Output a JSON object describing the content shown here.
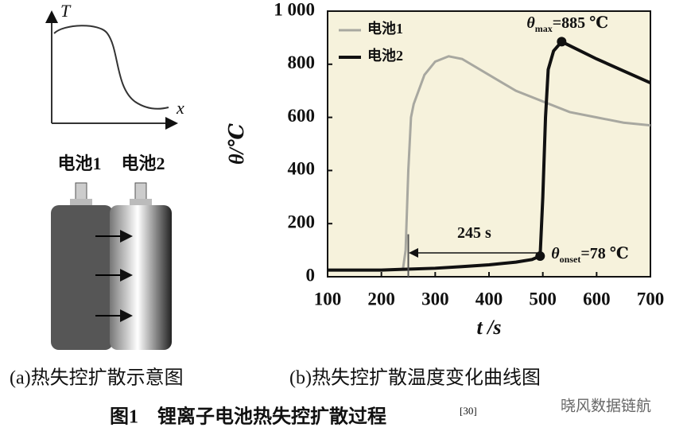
{
  "chart_data": {
    "type": "line",
    "x_label": "t /s",
    "y_label": "θ/℃",
    "xlim": [
      100,
      700
    ],
    "xticks": [
      100,
      200,
      300,
      400,
      500,
      600,
      700
    ],
    "ylim": [
      0,
      1000
    ],
    "yticks": [
      0,
      200,
      400,
      600,
      800,
      {
        "value": 1000,
        "label": "1 000"
      }
    ],
    "background": "#f6f2dc",
    "legend": "top-left",
    "series": [
      {
        "name": "电池1",
        "color": "#a8a8a0",
        "x": [
          100,
          200,
          240,
          245,
          250,
          255,
          260,
          280,
          300,
          325,
          350,
          400,
          450,
          500,
          550,
          600,
          650,
          700
        ],
        "values": [
          25,
          25,
          28,
          100,
          400,
          600,
          650,
          760,
          810,
          830,
          820,
          760,
          700,
          660,
          620,
          600,
          580,
          570
        ]
      },
      {
        "name": "电池2",
        "color": "#111111",
        "x": [
          100,
          200,
          240,
          300,
          350,
          400,
          450,
          480,
          495,
          500,
          505,
          510,
          520,
          535,
          550,
          600,
          650,
          700
        ],
        "values": [
          25,
          25,
          28,
          32,
          38,
          45,
          55,
          65,
          78,
          300,
          600,
          780,
          850,
          885,
          870,
          820,
          775,
          730
        ]
      }
    ],
    "annotations": {
      "max": {
        "symbol": "θ",
        "subscript": "max",
        "text": "=885 ℃",
        "x": 535,
        "y": 885
      },
      "onset": {
        "symbol": "θ",
        "subscript": "onset",
        "text": "=78 ℃",
        "x": 495,
        "y": 78
      },
      "span": {
        "label": "245 s",
        "value": 245
      }
    }
  },
  "diagram": {
    "y_axis": "T",
    "x_axis": "x",
    "cell_1": "电池1",
    "cell_2": "电池2"
  },
  "captions": {
    "a": "(a)热失控扩散示意图",
    "b": "(b)热失控扩散温度变化曲线图",
    "figure": "图1　锂离子电池热失控扩散过程",
    "reference": "[30]",
    "watermark": "晓风数据链航"
  }
}
